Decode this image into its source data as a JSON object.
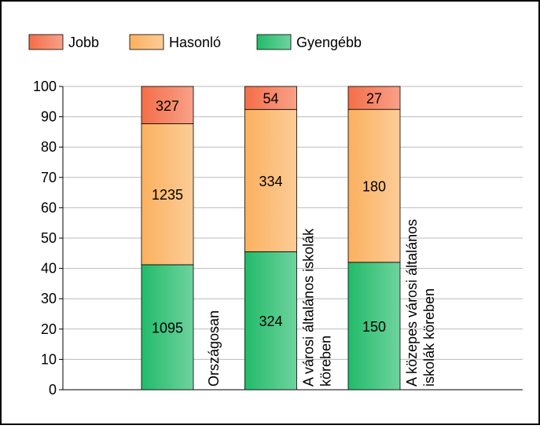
{
  "chart_data": {
    "type": "bar",
    "stacked": "percent",
    "categories": [
      [
        "Országosan"
      ],
      [
        "A városi általános iskolák",
        "köreben"
      ],
      [
        "A közepes városi általános",
        "iskolák köreben"
      ]
    ],
    "series": [
      {
        "name": "Gyengébb",
        "color": "#22bb6a",
        "values": [
          1095,
          324,
          150
        ]
      },
      {
        "name": "Hasonló",
        "color": "#fbb15f",
        "values": [
          1235,
          334,
          180
        ]
      },
      {
        "name": "Jobb",
        "color": "#f46e48",
        "values": [
          327,
          54,
          27
        ]
      }
    ],
    "legend": "top-left",
    "ylim": [
      0,
      100
    ],
    "yticks": [
      0,
      10,
      20,
      30,
      40,
      50,
      60,
      70,
      80,
      90,
      100
    ],
    "grid": true
  }
}
